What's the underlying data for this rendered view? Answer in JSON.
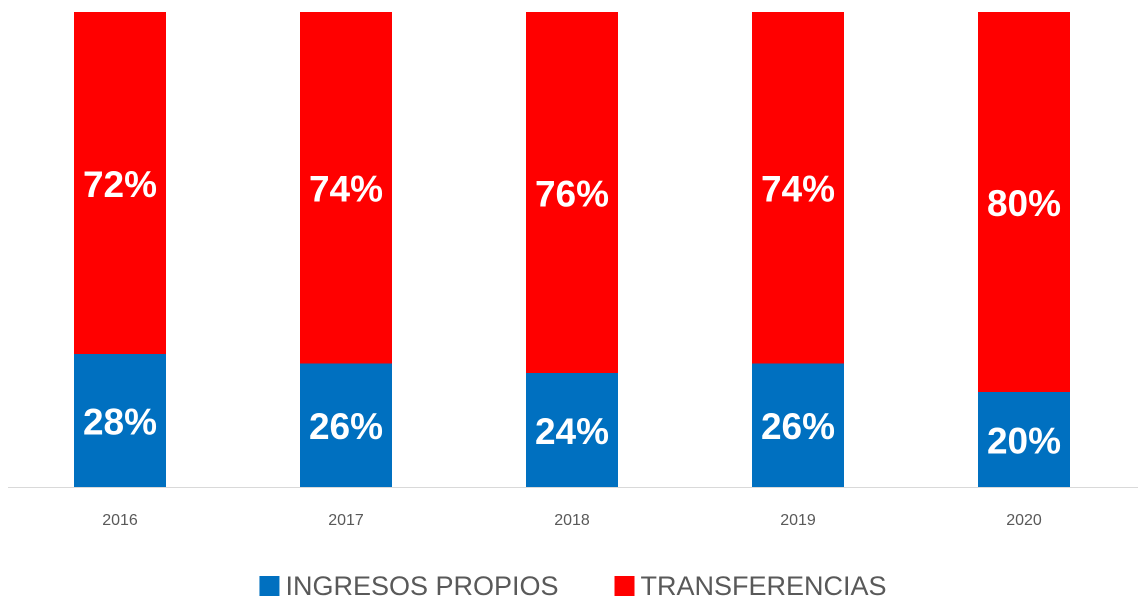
{
  "chart_data": {
    "type": "stacked_bar",
    "categories": [
      "2016",
      "2017",
      "2018",
      "2019",
      "2020"
    ],
    "series": [
      {
        "name": "INGRESOS PROPIOS",
        "color": "#0070c0",
        "values": [
          28,
          26,
          24,
          26,
          20
        ],
        "value_labels": [
          "28%",
          "26%",
          "24%",
          "26%",
          "20%"
        ]
      },
      {
        "name": "TRANSFERENCIAS",
        "color": "#ff0000",
        "values": [
          72,
          74,
          76,
          74,
          80
        ],
        "value_labels": [
          "72%",
          "74%",
          "76%",
          "74%",
          "80%"
        ]
      }
    ],
    "ylim": [
      0,
      100
    ],
    "legend": "bottom"
  }
}
